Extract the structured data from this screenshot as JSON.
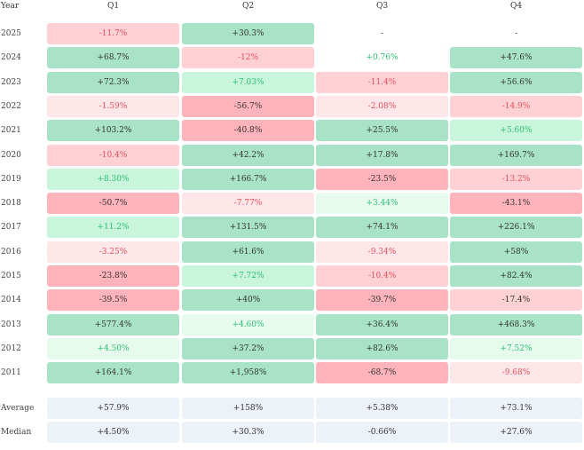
{
  "headers": {
    "year": "Year",
    "q1": "Q1",
    "q2": "Q2",
    "q3": "Q3",
    "q4": "Q4"
  },
  "colors": {
    "pos_strong": "#a8e3c7",
    "pos_mid": "#c8f5dc",
    "pos_light": "#e6fbee",
    "neg_strong": "#ffb3ba",
    "neg_mid": "#ffd1d5",
    "neg_light": "#ffe6e8",
    "summary": "#edf1f8",
    "text_dark": "#333333",
    "text_green": "#2fbf71",
    "text_red": "#e8505b"
  },
  "rows": [
    {
      "year": "2025",
      "cells": [
        {
          "v": "-11.7%",
          "bg": "neg_mid",
          "fg": "text_red"
        },
        {
          "v": "+30.3%",
          "bg": "pos_strong",
          "fg": "text_dark"
        },
        {
          "v": "-",
          "bg": "none",
          "fg": "text_dark"
        },
        {
          "v": "-",
          "bg": "none",
          "fg": "text_dark"
        }
      ]
    },
    {
      "year": "2024",
      "cells": [
        {
          "v": "+68.7%",
          "bg": "pos_strong",
          "fg": "text_dark"
        },
        {
          "v": "-12%",
          "bg": "neg_mid",
          "fg": "text_red"
        },
        {
          "v": "+0.76%",
          "bg": "none",
          "fg": "text_green"
        },
        {
          "v": "+47.6%",
          "bg": "pos_strong",
          "fg": "text_dark"
        }
      ]
    },
    {
      "year": "2023",
      "cells": [
        {
          "v": "+72.3%",
          "bg": "pos_strong",
          "fg": "text_dark"
        },
        {
          "v": "+7.03%",
          "bg": "pos_mid",
          "fg": "text_green"
        },
        {
          "v": "-11.4%",
          "bg": "neg_mid",
          "fg": "text_red"
        },
        {
          "v": "+56.6%",
          "bg": "pos_strong",
          "fg": "text_dark"
        }
      ]
    },
    {
      "year": "2022",
      "cells": [
        {
          "v": "-1.59%",
          "bg": "neg_light",
          "fg": "text_red"
        },
        {
          "v": "-56.7%",
          "bg": "neg_strong",
          "fg": "text_dark"
        },
        {
          "v": "-2.08%",
          "bg": "neg_light",
          "fg": "text_red"
        },
        {
          "v": "-14.9%",
          "bg": "neg_mid",
          "fg": "text_red"
        }
      ]
    },
    {
      "year": "2021",
      "cells": [
        {
          "v": "+103.2%",
          "bg": "pos_strong",
          "fg": "text_dark"
        },
        {
          "v": "-40.8%",
          "bg": "neg_strong",
          "fg": "text_dark"
        },
        {
          "v": "+25.5%",
          "bg": "pos_strong",
          "fg": "text_dark"
        },
        {
          "v": "+5.60%",
          "bg": "pos_mid",
          "fg": "text_green"
        }
      ]
    },
    {
      "year": "2020",
      "cells": [
        {
          "v": "-10.4%",
          "bg": "neg_mid",
          "fg": "text_red"
        },
        {
          "v": "+42.2%",
          "bg": "pos_strong",
          "fg": "text_dark"
        },
        {
          "v": "+17.8%",
          "bg": "pos_strong",
          "fg": "text_dark"
        },
        {
          "v": "+169.7%",
          "bg": "pos_strong",
          "fg": "text_dark"
        }
      ]
    },
    {
      "year": "2019",
      "cells": [
        {
          "v": "+8.30%",
          "bg": "pos_mid",
          "fg": "text_green"
        },
        {
          "v": "+166.7%",
          "bg": "pos_strong",
          "fg": "text_dark"
        },
        {
          "v": "-23.5%",
          "bg": "neg_strong",
          "fg": "text_dark"
        },
        {
          "v": "-13.2%",
          "bg": "neg_mid",
          "fg": "text_red"
        }
      ]
    },
    {
      "year": "2018",
      "cells": [
        {
          "v": "-50.7%",
          "bg": "neg_strong",
          "fg": "text_dark"
        },
        {
          "v": "-7.77%",
          "bg": "neg_light",
          "fg": "text_red"
        },
        {
          "v": "+3.44%",
          "bg": "pos_light",
          "fg": "text_green"
        },
        {
          "v": "-43.1%",
          "bg": "neg_strong",
          "fg": "text_dark"
        }
      ]
    },
    {
      "year": "2017",
      "cells": [
        {
          "v": "+11.2%",
          "bg": "pos_mid",
          "fg": "text_green"
        },
        {
          "v": "+131.5%",
          "bg": "pos_strong",
          "fg": "text_dark"
        },
        {
          "v": "+74.1%",
          "bg": "pos_strong",
          "fg": "text_dark"
        },
        {
          "v": "+226.1%",
          "bg": "pos_strong",
          "fg": "text_dark"
        }
      ]
    },
    {
      "year": "2016",
      "cells": [
        {
          "v": "-3.25%",
          "bg": "neg_light",
          "fg": "text_red"
        },
        {
          "v": "+61.6%",
          "bg": "pos_strong",
          "fg": "text_dark"
        },
        {
          "v": "-9.34%",
          "bg": "neg_light",
          "fg": "text_red"
        },
        {
          "v": "+58%",
          "bg": "pos_strong",
          "fg": "text_dark"
        }
      ]
    },
    {
      "year": "2015",
      "cells": [
        {
          "v": "-23.8%",
          "bg": "neg_strong",
          "fg": "text_dark"
        },
        {
          "v": "+7.72%",
          "bg": "pos_mid",
          "fg": "text_green"
        },
        {
          "v": "-10.4%",
          "bg": "neg_mid",
          "fg": "text_red"
        },
        {
          "v": "+82.4%",
          "bg": "pos_strong",
          "fg": "text_dark"
        }
      ]
    },
    {
      "year": "2014",
      "cells": [
        {
          "v": "-39.5%",
          "bg": "neg_strong",
          "fg": "text_dark"
        },
        {
          "v": "+40%",
          "bg": "pos_strong",
          "fg": "text_dark"
        },
        {
          "v": "-39.7%",
          "bg": "neg_strong",
          "fg": "text_dark"
        },
        {
          "v": "-17.4%",
          "bg": "neg_mid",
          "fg": "text_dark"
        }
      ]
    },
    {
      "year": "2013",
      "cells": [
        {
          "v": "+577.4%",
          "bg": "pos_strong",
          "fg": "text_dark"
        },
        {
          "v": "+4.60%",
          "bg": "pos_light",
          "fg": "text_green"
        },
        {
          "v": "+36.4%",
          "bg": "pos_strong",
          "fg": "text_dark"
        },
        {
          "v": "+468.3%",
          "bg": "pos_strong",
          "fg": "text_dark"
        }
      ]
    },
    {
      "year": "2012",
      "cells": [
        {
          "v": "+4.50%",
          "bg": "pos_light",
          "fg": "text_green"
        },
        {
          "v": "+37.2%",
          "bg": "pos_strong",
          "fg": "text_dark"
        },
        {
          "v": "+82.6%",
          "bg": "pos_strong",
          "fg": "text_dark"
        },
        {
          "v": "+7.52%",
          "bg": "pos_light",
          "fg": "text_green"
        }
      ]
    },
    {
      "year": "2011",
      "cells": [
        {
          "v": "+164.1%",
          "bg": "pos_strong",
          "fg": "text_dark"
        },
        {
          "v": "+1,958%",
          "bg": "pos_strong",
          "fg": "text_dark"
        },
        {
          "v": "-68.7%",
          "bg": "neg_strong",
          "fg": "text_dark"
        },
        {
          "v": "-9.68%",
          "bg": "neg_light",
          "fg": "text_red"
        }
      ]
    }
  ],
  "summary": [
    {
      "label": "Average",
      "cells": [
        "+57.9%",
        "+158%",
        "+5.38%",
        "+73.1%"
      ]
    },
    {
      "label": "Median",
      "cells": [
        "+4.50%",
        "+30.3%",
        "-0.66%",
        "+27.6%"
      ]
    }
  ]
}
